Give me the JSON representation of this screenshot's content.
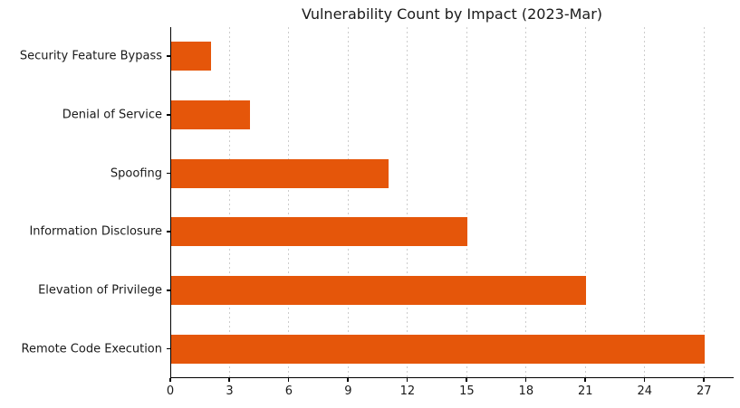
{
  "chart_data": {
    "type": "bar",
    "orientation": "horizontal",
    "title": "Vulnerability Count by Impact (2023-Mar)",
    "categories": [
      "Security Feature Bypass",
      "Denial of Service",
      "Spoofing",
      "Information Disclosure",
      "Elevation of Privilege",
      "Remote Code Execution"
    ],
    "values": [
      2,
      4,
      11,
      15,
      21,
      27
    ],
    "xticks": [
      0,
      3,
      6,
      9,
      12,
      15,
      18,
      21,
      24,
      27
    ],
    "xlim": [
      0,
      28.5
    ],
    "xlabel": "",
    "ylabel": "",
    "grid": "vertical-dashed",
    "legend": "none",
    "colors": {
      "bar": "#e5560a",
      "gridline": "#cccccc",
      "spine": "#000000",
      "text": "#1a1a1a",
      "background": "#ffffff"
    }
  }
}
